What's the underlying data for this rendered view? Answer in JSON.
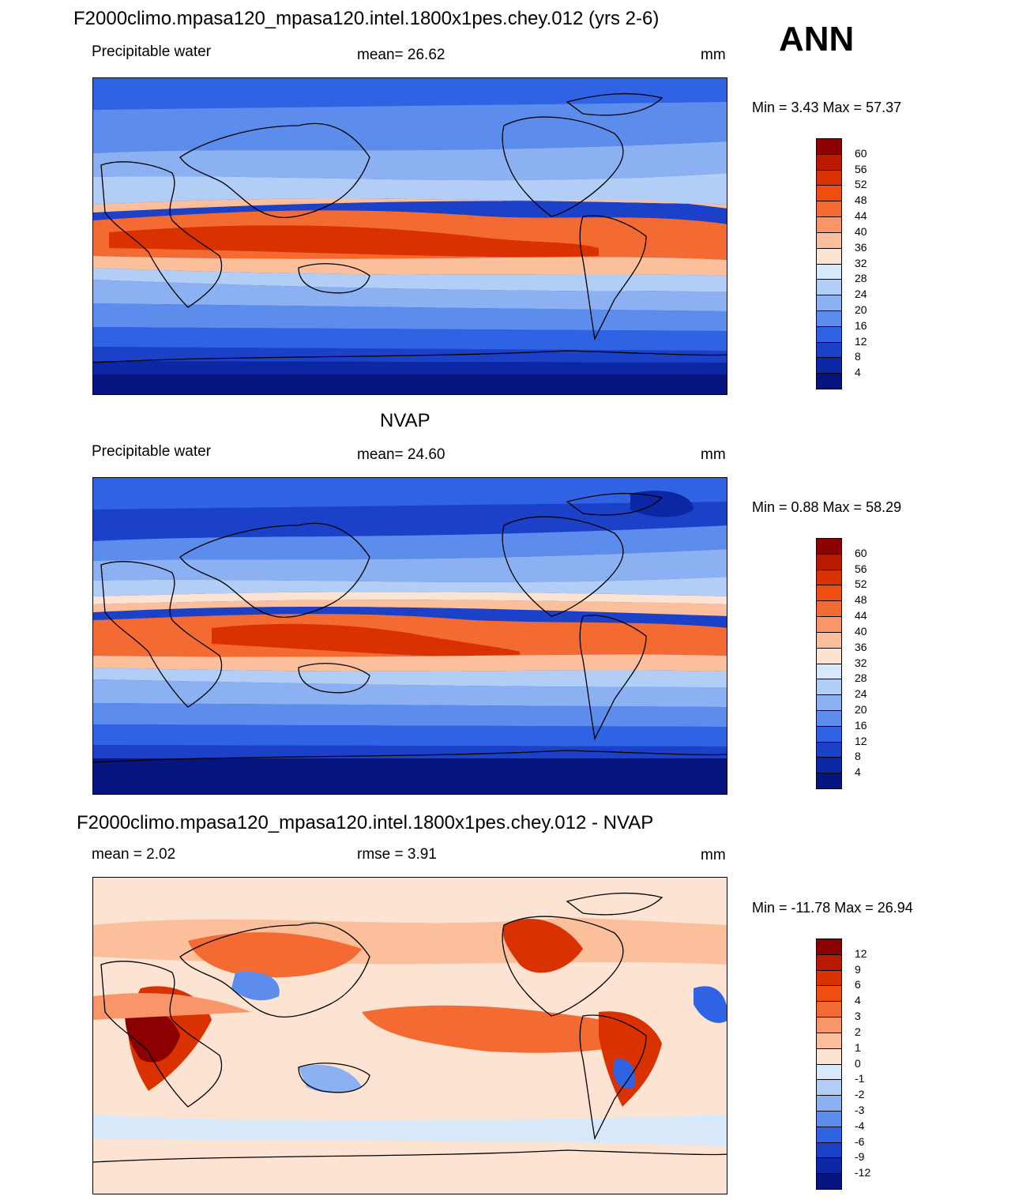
{
  "season": "ANN",
  "panels": [
    {
      "title": "F2000climo.mpasa120_mpasa120.intel.1800x1pes.chey.012 (yrs 2-6)",
      "left_label": "Precipitable water",
      "center_label": "mean=  26.62",
      "units": "mm",
      "minmax": "Min =   3.43 Max =  57.37",
      "colorbar_labels": [
        "60",
        "56",
        "52",
        "48",
        "44",
        "40",
        "36",
        "32",
        "28",
        "24",
        "20",
        "16",
        "12",
        "8",
        "4"
      ],
      "colorbar_colors": [
        "#8b0000",
        "#b81a00",
        "#d93200",
        "#f04d10",
        "#f36a32",
        "#f8966a",
        "#fbbf9c",
        "#fde4d2",
        "#d8e8fb",
        "#b2cdf6",
        "#8cb1f2",
        "#5c8ded",
        "#2f63e3",
        "#1b41c8",
        "#0c27a3",
        "#061480"
      ]
    },
    {
      "title": "NVAP",
      "left_label": "Precipitable water",
      "center_label": "mean=  24.60",
      "units": "mm",
      "minmax": "Min =   0.88 Max =  58.29",
      "colorbar_labels": [
        "60",
        "56",
        "52",
        "48",
        "44",
        "40",
        "36",
        "32",
        "28",
        "24",
        "20",
        "16",
        "12",
        "8",
        "4"
      ],
      "colorbar_colors": [
        "#8b0000",
        "#b81a00",
        "#d93200",
        "#f04d10",
        "#f36a32",
        "#f8966a",
        "#fbbf9c",
        "#fde4d2",
        "#d8e8fb",
        "#b2cdf6",
        "#8cb1f2",
        "#5c8ded",
        "#2f63e3",
        "#1b41c8",
        "#0c27a3",
        "#061480"
      ]
    },
    {
      "title": "F2000climo.mpasa120_mpasa120.intel.1800x1pes.chey.012 - NVAP",
      "left_label": "mean =    2.02",
      "center_label": "rmse =    3.91",
      "units": "mm",
      "minmax": "Min = -11.78 Max =  26.94",
      "colorbar_labels": [
        "12",
        "9",
        "6",
        "4",
        "3",
        "2",
        "1",
        "0",
        "-1",
        "-2",
        "-3",
        "-4",
        "-6",
        "-9",
        "-12"
      ],
      "colorbar_colors": [
        "#8b0000",
        "#b81a00",
        "#d93200",
        "#f04d10",
        "#f36a32",
        "#f8966a",
        "#fbbf9c",
        "#fde4d2",
        "#d8e8fb",
        "#b2cdf6",
        "#8cb1f2",
        "#5c8ded",
        "#2f63e3",
        "#1b41c8",
        "#0c27a3",
        "#061480"
      ]
    }
  ]
}
